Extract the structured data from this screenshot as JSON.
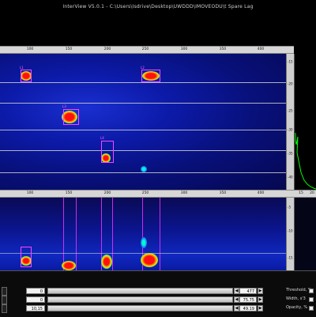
{
  "window": {
    "title": "InterView V5.0.1 - C:\\Users\\Isdrive\\Desktop\\UWDDD\\IMOVEODU\\t Spare Lag"
  },
  "top_axis": {
    "ticks": [
      "100",
      "150",
      "200",
      "250",
      "300",
      "350",
      "400"
    ]
  },
  "mid_axis": {
    "ticks": [
      "100",
      "150",
      "200",
      "250",
      "300",
      "350",
      "400"
    ]
  },
  "bottom_axis": {
    "ticks": [
      "100",
      "150",
      "200",
      "250",
      "300",
      "350",
      "400"
    ]
  },
  "right_axis_top": {
    "ticks": [
      "-15",
      "-20",
      "-25",
      "-30",
      "-35",
      "-40"
    ]
  },
  "right_axis_bottom": {
    "ticks": [
      "-5",
      "-10",
      "-15"
    ]
  },
  "profile_axis": {
    "ticks": [
      "15",
      "20"
    ]
  },
  "markers": [
    {
      "label": "L1"
    },
    {
      "label": "L2"
    },
    {
      "label": "L3"
    },
    {
      "label": "L4"
    }
  ],
  "controls": {
    "rows": [
      {
        "left_value": "0",
        "right_value": "477"
      },
      {
        "left_value": "0",
        "right_value": "75.75"
      },
      {
        "left_value": "10,15",
        "right_value": "49.19"
      }
    ],
    "labels": [
      {
        "text": "Threshold, %"
      },
      {
        "text": "Width, s'3"
      },
      {
        "text": "Opacity, %"
      }
    ]
  },
  "colors": {
    "background": "#000000",
    "heatmap_low": "#0a0a6a",
    "heatmap_high": "#ff0000",
    "marker": "#ff44ff",
    "profile_trace": "#00ff00"
  }
}
